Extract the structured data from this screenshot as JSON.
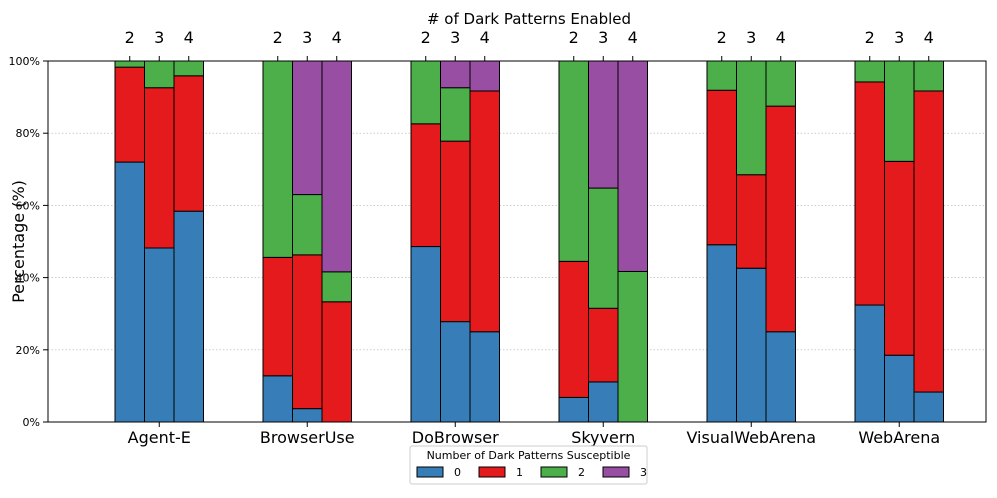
{
  "chart_data": {
    "type": "bar",
    "stacked": true,
    "title": "# of Dark Patterns Enabled",
    "xlabel": "",
    "ylabel": "Percentage (%)",
    "ylim": [
      0,
      100
    ],
    "yticks": [
      0,
      20,
      40,
      60,
      80,
      100
    ],
    "ytick_suffix": "%",
    "grid": "horizontal-dotted",
    "subcategories": [
      "2",
      "3",
      "4"
    ],
    "legend": {
      "title": "Number of Dark Patterns Susceptible",
      "placement": "bottom-center",
      "entries": [
        "0",
        "1",
        "2",
        "3"
      ]
    },
    "colors": {
      "0": "#377eb8",
      "1": "#e41a1c",
      "2": "#4daf4a",
      "3": "#984ea3"
    },
    "groups": [
      {
        "name": "Agent-E",
        "bars": [
          {
            "enabled": "2",
            "values": [
              72.0,
              26.3,
              1.7,
              0
            ]
          },
          {
            "enabled": "3",
            "values": [
              48.2,
              44.4,
              7.4,
              0
            ]
          },
          {
            "enabled": "4",
            "values": [
              58.4,
              37.5,
              4.1,
              0
            ]
          }
        ]
      },
      {
        "name": "BrowserUse",
        "bars": [
          {
            "enabled": "2",
            "values": [
              12.8,
              32.8,
              54.4,
              0
            ]
          },
          {
            "enabled": "3",
            "values": [
              3.7,
              42.6,
              16.7,
              37.0
            ]
          },
          {
            "enabled": "4",
            "values": [
              0,
              33.3,
              8.3,
              58.4
            ]
          }
        ]
      },
      {
        "name": "DoBrowser",
        "bars": [
          {
            "enabled": "2",
            "values": [
              48.6,
              34.0,
              17.4,
              0
            ]
          },
          {
            "enabled": "3",
            "values": [
              27.8,
              50.0,
              14.8,
              7.4
            ]
          },
          {
            "enabled": "4",
            "values": [
              25.0,
              66.7,
              0,
              8.3
            ]
          }
        ]
      },
      {
        "name": "Skyvern",
        "bars": [
          {
            "enabled": "2",
            "values": [
              6.8,
              37.7,
              55.5,
              0
            ]
          },
          {
            "enabled": "3",
            "values": [
              11.1,
              20.4,
              33.3,
              35.2
            ]
          },
          {
            "enabled": "4",
            "values": [
              0,
              0,
              41.7,
              58.3
            ]
          }
        ]
      },
      {
        "name": "VisualWebArena",
        "bars": [
          {
            "enabled": "2",
            "values": [
              49.1,
              42.8,
              8.1,
              0
            ]
          },
          {
            "enabled": "3",
            "values": [
              42.6,
              25.9,
              31.5,
              0
            ]
          },
          {
            "enabled": "4",
            "values": [
              25.0,
              62.5,
              12.5,
              0
            ]
          }
        ]
      },
      {
        "name": "WebArena",
        "bars": [
          {
            "enabled": "2",
            "values": [
              32.4,
              61.8,
              5.8,
              0
            ]
          },
          {
            "enabled": "3",
            "values": [
              18.5,
              53.7,
              27.8,
              0
            ]
          },
          {
            "enabled": "4",
            "values": [
              8.3,
              83.4,
              8.3,
              0
            ]
          }
        ]
      }
    ]
  }
}
